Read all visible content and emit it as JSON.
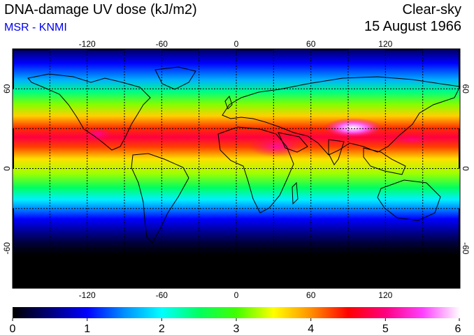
{
  "header": {
    "title": "DNA-damage UV dose (kJ/m2)",
    "subtitle": "MSR - KNMI",
    "sky": "Clear-sky",
    "date": "15 August 1966"
  },
  "map": {
    "lon_ticks": [
      -120,
      -60,
      0,
      60,
      120
    ],
    "lat_ticks": [
      60,
      0,
      -60
    ],
    "gridlines_lon": [
      -150,
      -120,
      -90,
      -60,
      -30,
      0,
      30,
      60,
      90,
      120,
      150
    ],
    "gridlines_lat": [
      60,
      30,
      0,
      -30,
      -60
    ],
    "lon_range": [
      -180,
      180
    ],
    "lat_range": [
      -90,
      90
    ]
  },
  "colorbar": {
    "ticks": [
      "0",
      "1",
      "2",
      "3",
      "4",
      "5",
      "6"
    ],
    "range": [
      0,
      6
    ],
    "colors": [
      "#000000",
      "#00007a",
      "#0000ff",
      "#0090ff",
      "#00ffff",
      "#00ff60",
      "#40ff00",
      "#ffff00",
      "#ff9000",
      "#ff0000",
      "#ff0080",
      "#ff40ff",
      "#ffffff"
    ]
  }
}
